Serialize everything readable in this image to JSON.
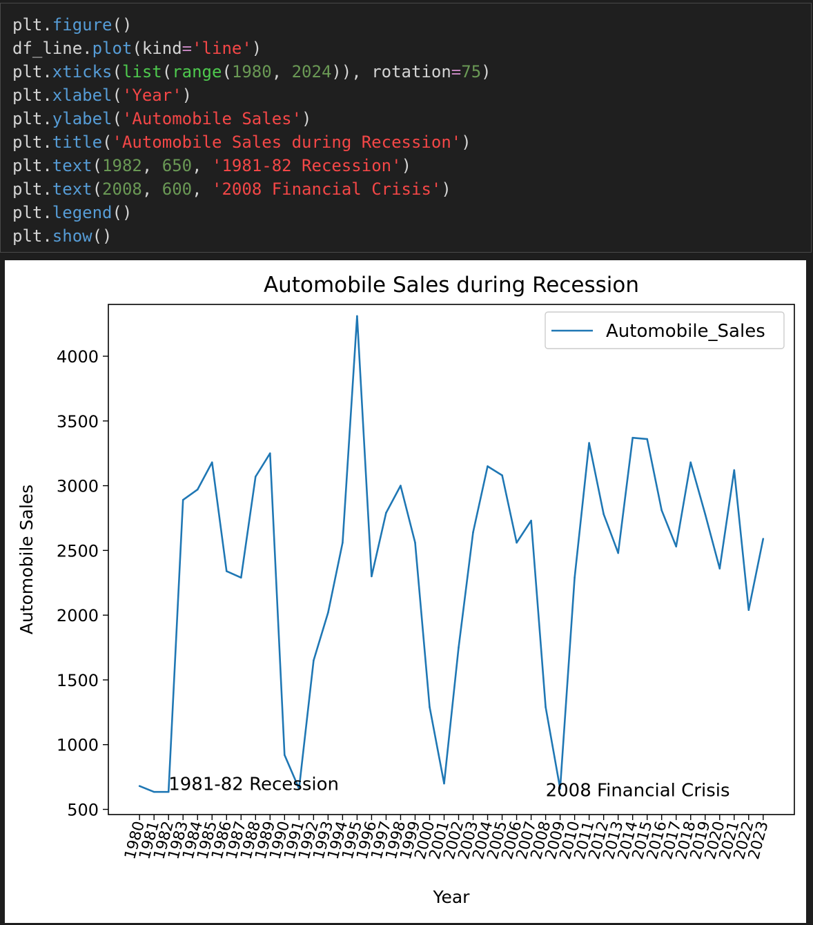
{
  "code_cell": {
    "lines": [
      [
        {
          "t": "plt.",
          "c": "default"
        },
        {
          "t": "figure",
          "c": "fn"
        },
        {
          "t": "()",
          "c": "default"
        }
      ],
      [
        {
          "t": "df_line.",
          "c": "default"
        },
        {
          "t": "plot",
          "c": "fn"
        },
        {
          "t": "(kind",
          "c": "default"
        },
        {
          "t": "=",
          "c": "op"
        },
        {
          "t": "'line'",
          "c": "str"
        },
        {
          "t": ")",
          "c": "default"
        }
      ],
      [
        {
          "t": "plt.",
          "c": "default"
        },
        {
          "t": "xticks",
          "c": "fn"
        },
        {
          "t": "(",
          "c": "default"
        },
        {
          "t": "list",
          "c": "builtin"
        },
        {
          "t": "(",
          "c": "default"
        },
        {
          "t": "range",
          "c": "builtin"
        },
        {
          "t": "(",
          "c": "default"
        },
        {
          "t": "1980",
          "c": "num"
        },
        {
          "t": ", ",
          "c": "default"
        },
        {
          "t": "2024",
          "c": "num"
        },
        {
          "t": ")), rotation",
          "c": "default"
        },
        {
          "t": "=",
          "c": "op"
        },
        {
          "t": "75",
          "c": "num"
        },
        {
          "t": ")",
          "c": "default"
        }
      ],
      [
        {
          "t": "plt.",
          "c": "default"
        },
        {
          "t": "xlabel",
          "c": "fn"
        },
        {
          "t": "(",
          "c": "default"
        },
        {
          "t": "'Year'",
          "c": "str"
        },
        {
          "t": ")",
          "c": "default"
        }
      ],
      [
        {
          "t": "plt.",
          "c": "default"
        },
        {
          "t": "ylabel",
          "c": "fn"
        },
        {
          "t": "(",
          "c": "default"
        },
        {
          "t": "'Automobile Sales'",
          "c": "str"
        },
        {
          "t": ")",
          "c": "default"
        }
      ],
      [
        {
          "t": "plt.",
          "c": "default"
        },
        {
          "t": "title",
          "c": "fn"
        },
        {
          "t": "(",
          "c": "default"
        },
        {
          "t": "'Automobile Sales during Recession'",
          "c": "str"
        },
        {
          "t": ")",
          "c": "default"
        }
      ],
      [
        {
          "t": "plt.",
          "c": "default"
        },
        {
          "t": "text",
          "c": "fn"
        },
        {
          "t": "(",
          "c": "default"
        },
        {
          "t": "1982",
          "c": "num"
        },
        {
          "t": ", ",
          "c": "default"
        },
        {
          "t": "650",
          "c": "num"
        },
        {
          "t": ", ",
          "c": "default"
        },
        {
          "t": "'1981-82 Recession'",
          "c": "str"
        },
        {
          "t": ")",
          "c": "default"
        }
      ],
      [
        {
          "t": "plt.",
          "c": "default"
        },
        {
          "t": "text",
          "c": "fn"
        },
        {
          "t": "(",
          "c": "default"
        },
        {
          "t": "2008",
          "c": "num"
        },
        {
          "t": ", ",
          "c": "default"
        },
        {
          "t": "600",
          "c": "num"
        },
        {
          "t": ", ",
          "c": "default"
        },
        {
          "t": "'2008 Financial Crisis'",
          "c": "str"
        },
        {
          "t": ")",
          "c": "default"
        }
      ],
      [
        {
          "t": "plt.",
          "c": "default"
        },
        {
          "t": "legend",
          "c": "fn"
        },
        {
          "t": "()",
          "c": "default"
        }
      ],
      [
        {
          "t": "plt.",
          "c": "default"
        },
        {
          "t": "show",
          "c": "fn"
        },
        {
          "t": "()",
          "c": "default"
        }
      ]
    ]
  },
  "chart_data": {
    "type": "line",
    "title": "Automobile Sales during Recession",
    "xlabel": "Year",
    "ylabel": "Automobile Sales",
    "xlim": [
      1977.85,
      2025.15
    ],
    "ylim": [
      460,
      4400
    ],
    "yticks": [
      500,
      1000,
      1500,
      2000,
      2500,
      3000,
      3500,
      4000
    ],
    "xticks": [
      1980,
      1981,
      1982,
      1983,
      1984,
      1985,
      1986,
      1987,
      1988,
      1989,
      1990,
      1991,
      1992,
      1993,
      1994,
      1995,
      1996,
      1997,
      1998,
      1999,
      2000,
      2001,
      2002,
      2003,
      2004,
      2005,
      2006,
      2007,
      2008,
      2009,
      2010,
      2011,
      2012,
      2013,
      2014,
      2015,
      2016,
      2017,
      2018,
      2019,
      2020,
      2021,
      2022,
      2023
    ],
    "xtick_rotation": 75,
    "legend_position": "upper right",
    "grid": false,
    "series": [
      {
        "name": "Automobile_Sales",
        "color": "#1f77b4",
        "x": [
          1980,
          1981,
          1982,
          1983,
          1984,
          1985,
          1986,
          1987,
          1988,
          1989,
          1990,
          1991,
          1992,
          1993,
          1994,
          1995,
          1996,
          1997,
          1998,
          1999,
          2000,
          2001,
          2002,
          2003,
          2004,
          2005,
          2006,
          2007,
          2008,
          2009,
          2010,
          2011,
          2012,
          2013,
          2014,
          2015,
          2016,
          2017,
          2018,
          2019,
          2020,
          2021,
          2022,
          2023
        ],
        "values": [
          680,
          635,
          635,
          2890,
          2970,
          3180,
          2340,
          2290,
          3070,
          3250,
          920,
          660,
          1650,
          2020,
          2560,
          4310,
          2300,
          2790,
          3000,
          2560,
          1290,
          700,
          1750,
          2640,
          3150,
          3080,
          2560,
          2730,
          1290,
          660,
          2290,
          3330,
          2780,
          2480,
          3370,
          3360,
          2810,
          2530,
          3180,
          2780,
          2360,
          3120,
          2040,
          2590
        ]
      }
    ],
    "annotations": [
      {
        "x": 1982,
        "y": 650,
        "text": "1981-82 Recession"
      },
      {
        "x": 2008,
        "y": 600,
        "text": "2008 Financial Crisis"
      }
    ]
  }
}
